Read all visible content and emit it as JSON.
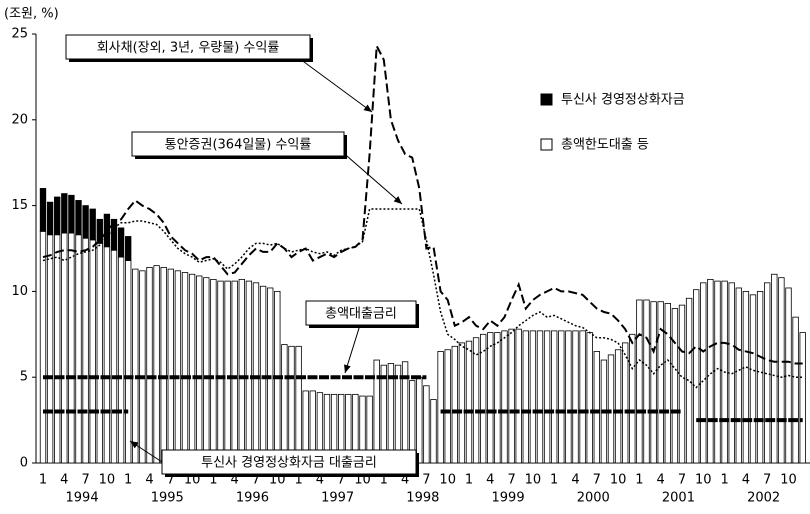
{
  "chart_data": {
    "type": "bar",
    "y_label": "(조원, %)",
    "ylim": [
      0,
      25
    ],
    "yticks": [
      0,
      5,
      10,
      15,
      20,
      25
    ],
    "grid": false,
    "stacked": true,
    "legend": "upper right",
    "categories": [
      "1",
      null,
      null,
      "4",
      null,
      null,
      "7",
      null,
      null,
      "10",
      null,
      null,
      "1",
      null,
      null,
      "4",
      null,
      null,
      "7",
      null,
      null,
      "10",
      null,
      null,
      "1",
      null,
      null,
      "4",
      null,
      null,
      "7",
      null,
      null,
      "10",
      null,
      null,
      "1",
      null,
      null,
      "4",
      null,
      null,
      "7",
      null,
      null,
      "10",
      null,
      null,
      "1",
      null,
      null,
      "4",
      null,
      null,
      "7",
      null,
      null,
      "10",
      null,
      null,
      "1",
      null,
      null,
      "4",
      null,
      null,
      "7",
      null,
      null,
      "10",
      null,
      null,
      "1",
      null,
      null,
      "4",
      null,
      null,
      "7",
      null,
      null,
      "10",
      null,
      null,
      "1",
      null,
      null,
      "4",
      null,
      null,
      "7",
      null,
      null,
      "10",
      null,
      null,
      "1",
      null,
      null,
      "4",
      null,
      null,
      "7",
      null,
      null,
      "10",
      null,
      null
    ],
    "years": [
      "1994",
      "1995",
      "1996",
      "1997",
      "1998",
      "1999",
      "2000",
      "2001",
      "2002"
    ],
    "series": [
      {
        "name": "총액한도대출 등",
        "kind": "bar",
        "color": "#ffffff",
        "values": [
          13.5,
          13.3,
          13.3,
          13.4,
          13.4,
          13.3,
          13.1,
          13.0,
          12.8,
          12.6,
          12.4,
          12.0,
          11.8,
          11.3,
          11.2,
          11.4,
          11.5,
          11.4,
          11.3,
          11.2,
          11.1,
          11.0,
          10.9,
          10.8,
          10.7,
          10.6,
          10.6,
          10.6,
          10.7,
          10.6,
          10.5,
          10.3,
          10.2,
          10.0,
          6.9,
          6.8,
          6.8,
          4.2,
          4.2,
          4.1,
          4.0,
          4.0,
          4.0,
          4.0,
          4.0,
          3.9,
          3.9,
          6.0,
          5.7,
          5.8,
          5.7,
          5.9,
          4.8,
          5.0,
          4.5,
          3.7,
          6.5,
          6.6,
          6.8,
          7.0,
          7.1,
          7.3,
          7.5,
          7.6,
          7.6,
          7.7,
          7.8,
          7.8,
          7.7,
          7.7,
          7.7,
          7.7,
          7.7,
          7.7,
          7.7,
          7.7,
          7.7,
          7.6,
          6.5,
          6.0,
          6.3,
          6.6,
          7.0,
          7.5,
          9.5,
          9.5,
          9.4,
          9.4,
          9.3,
          9.0,
          9.2,
          9.6,
          10.1,
          10.5,
          10.7,
          10.6,
          10.6,
          10.5,
          10.2,
          10.0,
          9.8,
          10.0,
          10.5,
          11.0,
          10.8,
          10.2,
          8.5,
          7.6
        ]
      },
      {
        "name": "투신사 경영정상화자금",
        "kind": "bar",
        "color": "#000000",
        "values": [
          2.5,
          1.9,
          2.2,
          2.3,
          2.2,
          2.0,
          1.9,
          1.8,
          1.4,
          1.9,
          1.8,
          1.7,
          1.4,
          null,
          null,
          null,
          null,
          null,
          null,
          null,
          null,
          null,
          null,
          null,
          null,
          null,
          null,
          null,
          null,
          null,
          null,
          null,
          null,
          null,
          null,
          null,
          null,
          null,
          null,
          null,
          null,
          null,
          null,
          null,
          null,
          null,
          null,
          null,
          null,
          null,
          null,
          null,
          null,
          null,
          null,
          null,
          null,
          null,
          null,
          null,
          null,
          null,
          null,
          null,
          null,
          null,
          null,
          null,
          null,
          null,
          null,
          null,
          null,
          null,
          null,
          null,
          null,
          null,
          null,
          null,
          null,
          null,
          null,
          null,
          null,
          null,
          null,
          null,
          null,
          null,
          null,
          null,
          null,
          null,
          null,
          null,
          null,
          null,
          null,
          null,
          null,
          null,
          null,
          null,
          null,
          null,
          null,
          null
        ]
      },
      {
        "name": "회사채(장외, 3년, 우량물) 수익률",
        "kind": "line",
        "color": "#000000",
        "dash": "9,4",
        "width": 2,
        "values": [
          12.0,
          12.1,
          12.3,
          12.4,
          12.4,
          12.3,
          12.4,
          12.6,
          13.0,
          13.5,
          14.0,
          14.2,
          14.8,
          15.3,
          15.0,
          14.8,
          14.5,
          14.0,
          13.2,
          12.8,
          12.4,
          12.2,
          11.8,
          12.0,
          12.0,
          11.5,
          11.0,
          11.1,
          11.6,
          12.1,
          12.5,
          12.3,
          12.3,
          12.8,
          12.5,
          12.0,
          12.3,
          12.5,
          11.8,
          12.0,
          12.2,
          12.0,
          12.3,
          12.5,
          12.6,
          13.0,
          18.0,
          24.3,
          23.5,
          20.0,
          18.8,
          18.0,
          17.8,
          16.0,
          12.5,
          12.6,
          10.0,
          9.5,
          8.0,
          8.2,
          8.5,
          8.0,
          7.8,
          8.3,
          8.0,
          8.5,
          9.5,
          10.4,
          9.0,
          9.5,
          9.8,
          10.0,
          10.2,
          10.0,
          10.0,
          9.9,
          9.8,
          9.4,
          9.0,
          8.8,
          8.7,
          8.3,
          7.8,
          7.0,
          7.5,
          7.3,
          6.5,
          7.8,
          7.5,
          7.0,
          6.5,
          6.4,
          6.8,
          6.5,
          6.8,
          7.0,
          7.0,
          6.9,
          6.6,
          6.5,
          6.4,
          6.2,
          6.0,
          5.9,
          5.9,
          5.9,
          5.8,
          5.8
        ]
      },
      {
        "name": "통안증권(364일물) 수익률",
        "kind": "line",
        "color": "#000000",
        "dash": "2,2",
        "width": 1.5,
        "values": [
          11.8,
          11.9,
          12.0,
          11.8,
          12.0,
          12.2,
          12.3,
          12.4,
          12.7,
          13.2,
          13.7,
          14.0,
          14.0,
          14.1,
          14.1,
          14.0,
          13.9,
          13.5,
          13.0,
          12.5,
          12.2,
          12.0,
          11.7,
          11.8,
          11.9,
          11.7,
          11.3,
          11.6,
          12.0,
          12.5,
          12.8,
          12.8,
          12.7,
          12.8,
          12.5,
          12.3,
          12.4,
          12.5,
          12.3,
          12.2,
          12.3,
          12.1,
          12.4,
          12.5,
          12.6,
          12.9,
          14.8,
          14.8,
          14.8,
          14.8,
          14.8,
          14.8,
          14.8,
          14.8,
          13.0,
          11.0,
          8.8,
          7.5,
          7.2,
          6.8,
          6.6,
          6.3,
          6.5,
          6.8,
          7.0,
          7.3,
          7.6,
          8.0,
          8.3,
          8.6,
          8.8,
          8.5,
          8.6,
          8.4,
          8.2,
          8.0,
          7.9,
          7.6,
          7.3,
          7.3,
          7.2,
          7.0,
          6.3,
          5.5,
          6.0,
          5.7,
          5.2,
          5.7,
          6.0,
          5.5,
          5.0,
          4.8,
          4.4,
          4.8,
          5.2,
          5.5,
          5.3,
          5.2,
          5.4,
          5.6,
          5.4,
          5.3,
          5.2,
          5.1,
          5.0,
          5.1,
          5.0,
          5.0
        ]
      },
      {
        "name": "총액대출금리",
        "kind": "line",
        "color": "#000000",
        "dash": "10,1.5",
        "width": 4,
        "values": [
          5,
          5,
          5,
          5,
          5,
          5,
          5,
          5,
          5,
          5,
          5,
          5,
          5,
          5,
          5,
          5,
          5,
          5,
          5,
          5,
          5,
          5,
          5,
          5,
          5,
          5,
          5,
          5,
          5,
          5,
          5,
          5,
          5,
          5,
          5,
          5,
          5,
          5,
          5,
          5,
          5,
          5,
          5,
          5,
          5,
          5,
          5,
          5,
          5,
          5,
          5,
          5,
          5,
          5,
          5,
          null,
          3,
          3,
          3,
          3,
          3,
          3,
          3,
          3,
          3,
          3,
          3,
          3,
          3,
          3,
          3,
          3,
          3,
          3,
          3,
          3,
          3,
          3,
          3,
          3,
          3,
          3,
          3,
          3,
          3,
          3,
          3,
          3,
          3,
          3,
          3,
          null,
          2.5,
          2.5,
          2.5,
          2.5,
          2.5,
          2.5,
          2.5,
          2.5,
          2.5,
          2.5,
          2.5,
          2.5,
          2.5,
          2.5,
          2.5,
          2.5
        ]
      },
      {
        "name": "투신사 경영정상화자금 대출금리",
        "kind": "line",
        "color": "#000000",
        "dash": "10,1.5",
        "width": 4,
        "values": [
          3,
          3,
          3,
          3,
          3,
          3,
          3,
          3,
          3,
          3,
          3,
          3,
          3,
          null,
          null,
          null,
          null,
          null,
          null,
          null,
          null,
          null,
          null,
          null,
          null,
          null,
          null,
          null,
          null,
          null,
          null,
          null,
          null,
          null,
          null,
          null,
          null,
          null,
          null,
          null,
          null,
          null,
          null,
          null,
          null,
          null,
          null,
          null,
          null,
          null,
          null,
          null,
          null,
          null,
          null,
          null,
          null,
          null,
          null,
          null,
          null,
          null,
          null,
          null,
          null,
          null,
          null,
          null,
          null,
          null,
          null,
          null,
          null,
          null,
          null,
          null,
          null,
          null,
          null,
          null,
          null,
          null,
          null,
          null,
          null,
          null,
          null,
          null,
          null,
          null,
          null,
          null,
          null,
          null,
          null,
          null,
          null,
          null,
          null,
          null,
          null,
          null,
          null,
          null,
          null,
          null,
          null,
          null
        ]
      }
    ]
  }
}
